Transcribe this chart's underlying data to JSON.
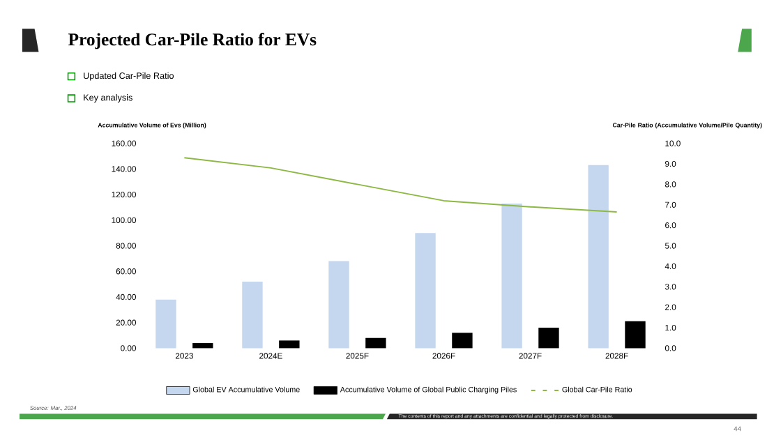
{
  "chart_data": {
    "type": "bar",
    "title": "Projected Car-Pile Ratio for EVs",
    "annotations": [
      "Updated Car-Pile Ratio",
      "Key analysis",
      "Source: Mar., 2024",
      "The contents of this report and any attachments are confidential and legally protected from disclosure.",
      "44"
    ],
    "ylabel": "Accumulative Volume of Evs (Million)",
    "y2label": "Car-Pile Ratio (Accumulative Volume/Pile Quantity)",
    "categories": [
      "2023",
      "2024E",
      "2025F",
      "2026F",
      "2027F",
      "2028F"
    ],
    "series": [
      {
        "name": "Global EV Accumulative Volume",
        "color": "#c5d6ef",
        "values": [
          38,
          52,
          68,
          90,
          113,
          143
        ]
      },
      {
        "name": "Accumulative Volume of Global Public Charging Piles",
        "color": "#000000",
        "values": [
          4,
          6,
          8,
          12,
          16,
          21
        ]
      },
      {
        "name": "Global Car-Pile Ratio",
        "type": "line",
        "axis": "y2",
        "color": "#8db843",
        "values": [
          9.3,
          8.8,
          8.0,
          7.2,
          6.9,
          6.65
        ]
      }
    ],
    "ylim": [
      0,
      160
    ],
    "yticks": [
      {
        "value": 0,
        "label": "0.00"
      },
      {
        "value": 20,
        "label": "20.00"
      },
      {
        "value": 40,
        "label": "40.00"
      },
      {
        "value": 60,
        "label": "60.00"
      },
      {
        "value": 80,
        "label": "80.00"
      },
      {
        "value": 100,
        "label": "100.00"
      },
      {
        "value": 120,
        "label": "120.00"
      },
      {
        "value": 140,
        "label": "140.00"
      },
      {
        "value": 160,
        "label": "160.00"
      }
    ],
    "y2lim": [
      0,
      10
    ],
    "y2ticks": [
      {
        "value": 0,
        "label": "0.0"
      },
      {
        "value": 1,
        "label": "1.0"
      },
      {
        "value": 2,
        "label": "2.0"
      },
      {
        "value": 3,
        "label": "3.0"
      },
      {
        "value": 4,
        "label": "4.0"
      },
      {
        "value": 5,
        "label": "5.0"
      },
      {
        "value": 6,
        "label": "6.0"
      },
      {
        "value": 7,
        "label": "7.0"
      },
      {
        "value": 8,
        "label": "8.0"
      },
      {
        "value": 9,
        "label": "9.0"
      },
      {
        "value": 10,
        "label": "10.0"
      }
    ],
    "legend": "bottom",
    "grid": false
  }
}
